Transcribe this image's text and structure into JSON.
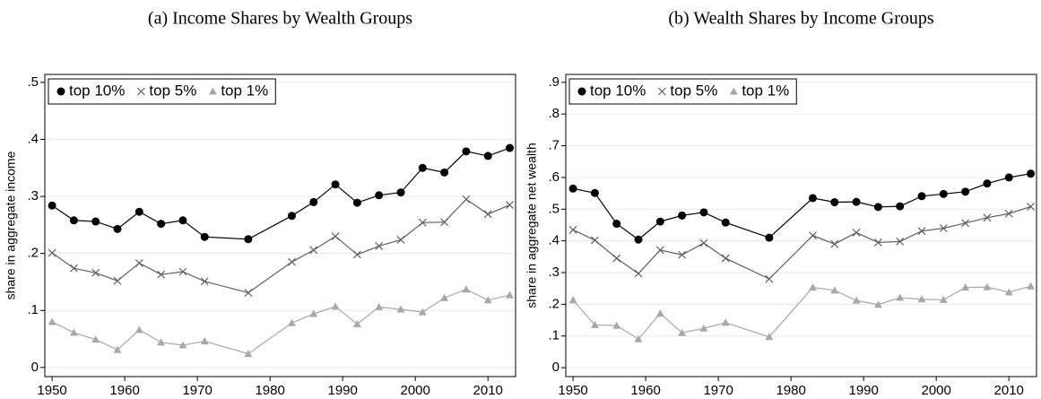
{
  "chart_data": [
    {
      "type": "line",
      "title": "(a) Income Shares by Wealth Groups",
      "ylabel": "share in aggregate income",
      "x": [
        1950,
        1953,
        1956,
        1959,
        1962,
        1965,
        1968,
        1971,
        1977,
        1983,
        1986,
        1989,
        1992,
        1995,
        1998,
        2001,
        2004,
        2007,
        2010,
        2013
      ],
      "series": [
        {
          "name": "top 10%",
          "color": "#000000",
          "marker": "circle",
          "values": [
            0.284,
            0.258,
            0.256,
            0.243,
            0.273,
            0.252,
            0.258,
            0.229,
            0.225,
            0.266,
            0.29,
            0.321,
            0.289,
            0.302,
            0.307,
            0.35,
            0.342,
            0.379,
            0.371,
            0.385
          ]
        },
        {
          "name": "top 5%",
          "color": "#5f5f5f",
          "marker": "x",
          "values": [
            0.201,
            0.174,
            0.166,
            0.152,
            0.183,
            0.163,
            0.168,
            0.151,
            0.131,
            0.185,
            0.206,
            0.23,
            0.198,
            0.213,
            0.224,
            0.254,
            0.255,
            0.295,
            0.269,
            0.285
          ]
        },
        {
          "name": "top 1%",
          "color": "#a8a8a8",
          "marker": "triangle",
          "values": [
            0.08,
            0.061,
            0.049,
            0.031,
            0.066,
            0.044,
            0.039,
            0.046,
            0.024,
            0.078,
            0.094,
            0.107,
            0.076,
            0.106,
            0.102,
            0.097,
            0.122,
            0.137,
            0.118,
            0.127
          ]
        }
      ],
      "xlim": [
        1949,
        2013.8
      ],
      "xticks": [
        1950,
        1960,
        1970,
        1980,
        1990,
        2000,
        2010
      ],
      "ylim": [
        -0.016,
        0.514
      ],
      "yticks": [
        0,
        {
          "value": 0.1,
          "label": ".1"
        },
        {
          "value": 0.2,
          "label": ".2"
        },
        {
          "value": 0.3,
          "label": ".3"
        },
        {
          "value": 0.4,
          "label": ".4"
        },
        {
          "value": 0.5,
          "label": ".5"
        }
      ],
      "grid": true,
      "legend": "top-left"
    },
    {
      "type": "line",
      "title": "(b) Wealth Shares by Income Groups",
      "ylabel": "share in aggregate net wealth",
      "x": [
        1950,
        1953,
        1956,
        1959,
        1962,
        1965,
        1968,
        1971,
        1977,
        1983,
        1986,
        1989,
        1992,
        1995,
        1998,
        2001,
        2004,
        2007,
        2010,
        2013
      ],
      "series": [
        {
          "name": "top 10%",
          "color": "#000000",
          "marker": "circle",
          "values": [
            0.565,
            0.551,
            0.454,
            0.404,
            0.461,
            0.48,
            0.49,
            0.458,
            0.41,
            0.535,
            0.522,
            0.523,
            0.507,
            0.509,
            0.541,
            0.548,
            0.555,
            0.581,
            0.6,
            0.612
          ]
        },
        {
          "name": "top 5%",
          "color": "#5f5f5f",
          "marker": "x",
          "values": [
            0.435,
            0.402,
            0.345,
            0.297,
            0.371,
            0.356,
            0.393,
            0.345,
            0.28,
            0.417,
            0.39,
            0.426,
            0.395,
            0.398,
            0.431,
            0.44,
            0.456,
            0.473,
            0.486,
            0.508
          ]
        },
        {
          "name": "top 1%",
          "color": "#a8a8a8",
          "marker": "triangle",
          "values": [
            0.213,
            0.135,
            0.133,
            0.09,
            0.171,
            0.11,
            0.124,
            0.142,
            0.097,
            0.253,
            0.244,
            0.212,
            0.199,
            0.221,
            0.216,
            0.214,
            0.253,
            0.254,
            0.238,
            0.257
          ]
        }
      ],
      "xlim": [
        1949,
        2013.8
      ],
      "xticks": [
        1950,
        1960,
        1970,
        1980,
        1990,
        2000,
        2010
      ],
      "ylim": [
        -0.028,
        0.925
      ],
      "yticks": [
        0,
        {
          "value": 0.1,
          "label": ".1"
        },
        {
          "value": 0.2,
          "label": ".2"
        },
        {
          "value": 0.3,
          "label": ".3"
        },
        {
          "value": 0.4,
          "label": ".4"
        },
        {
          "value": 0.5,
          "label": ".5"
        },
        {
          "value": 0.6,
          "label": ".6"
        },
        {
          "value": 0.7,
          "label": ".7"
        },
        {
          "value": 0.8,
          "label": ".8"
        },
        {
          "value": 0.9,
          "label": ".9"
        }
      ],
      "grid": true,
      "legend": "top-left"
    }
  ]
}
